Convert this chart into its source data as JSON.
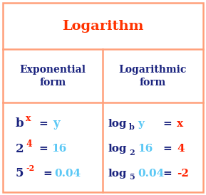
{
  "title": "Logarithm",
  "title_color": "#FF3300",
  "header_left": "Exponential\nform",
  "header_right": "Logarithmic\nform",
  "header_color": "#1a237e",
  "border_color": "#FFA07A",
  "bg_color": "#FFFFFF",
  "dark_blue": "#1a237e",
  "red_color": "#FF2200",
  "cyan_color": "#5BC8F5",
  "figsize": [
    2.89,
    2.74
  ],
  "dpi": 100
}
